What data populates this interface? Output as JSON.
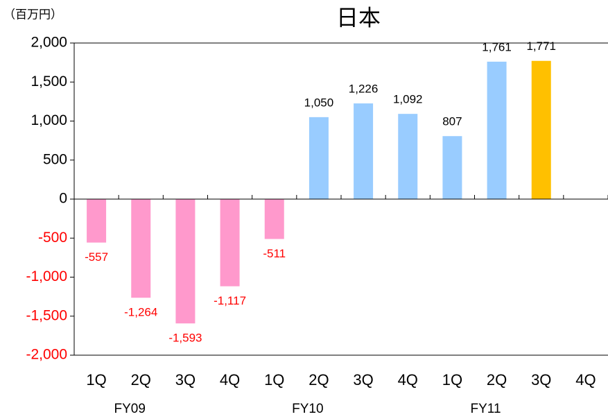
{
  "chart_data": {
    "type": "bar",
    "title": "日本",
    "unit_label": "（百万円）",
    "categories": [
      "1Q",
      "2Q",
      "3Q",
      "4Q",
      "1Q",
      "2Q",
      "3Q",
      "4Q",
      "1Q",
      "2Q",
      "3Q",
      "4Q"
    ],
    "groups": [
      "FY09",
      "FY10",
      "FY11"
    ],
    "values": [
      -557,
      -1264,
      -1593,
      -1117,
      -511,
      1050,
      1226,
      1092,
      807,
      1761,
      1771,
      null
    ],
    "value_labels": [
      "-557",
      "-1,264",
      "-1,593",
      "-1,117",
      "-511",
      "1,050",
      "1,226",
      "1,092",
      "807",
      "1,761",
      "1,771",
      null
    ],
    "colors": [
      "#ff99cc",
      "#ff99cc",
      "#ff99cc",
      "#ff99cc",
      "#ff99cc",
      "#99ccff",
      "#99ccff",
      "#99ccff",
      "#99ccff",
      "#99ccff",
      "#ffc000",
      null
    ],
    "negative_text_color": "#ff0000",
    "ylim": [
      -2000,
      2000
    ],
    "yticks": [
      {
        "value": -2000,
        "label": "-2,000"
      },
      {
        "value": -1500,
        "label": "-1,500"
      },
      {
        "value": -1000,
        "label": "-1,000"
      },
      -500,
      0,
      500,
      {
        "value": 1000,
        "label": "1,000"
      },
      {
        "value": 1500,
        "label": "1,500"
      },
      {
        "value": 2000,
        "label": "2,000"
      }
    ],
    "grid": false
  }
}
